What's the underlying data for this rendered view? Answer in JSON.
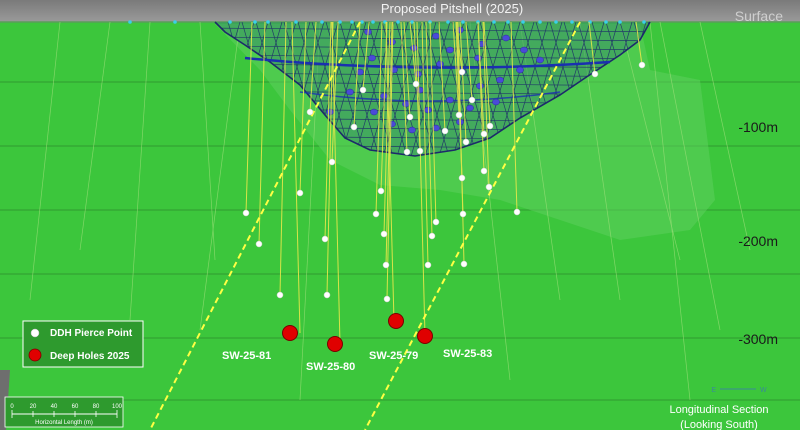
{
  "title": "Proposed Pitshell (2025)",
  "surface_label": "Surface",
  "depth_labels": [
    "-100m",
    "-200m",
    "-300m"
  ],
  "legend": {
    "pierce_point_label": "DDH Pierce Point",
    "deep_holes_label": "Deep Holes 2025"
  },
  "scale_bar": {
    "ticks": [
      "0",
      "20",
      "40",
      "60",
      "80",
      "100"
    ],
    "label": "Horizontal Length (m)"
  },
  "deep_holes": [
    "SW-25-81",
    "SW-25-80",
    "SW-25-79",
    "SW-25-83"
  ],
  "caption": {
    "line1": "Longitudinal Section",
    "line2": "(Looking South)"
  },
  "compass": [
    "E",
    "W"
  ],
  "colors": {
    "background": "#3cc63c",
    "sky": "#7f7f7f",
    "pitshell_mesh": "#1c2a6a",
    "deep_hole_fill": "#e00000",
    "pierce_point_fill": "#ffffff",
    "fault_line": "#ffff44",
    "drill_trace": "#e8e84a"
  }
}
